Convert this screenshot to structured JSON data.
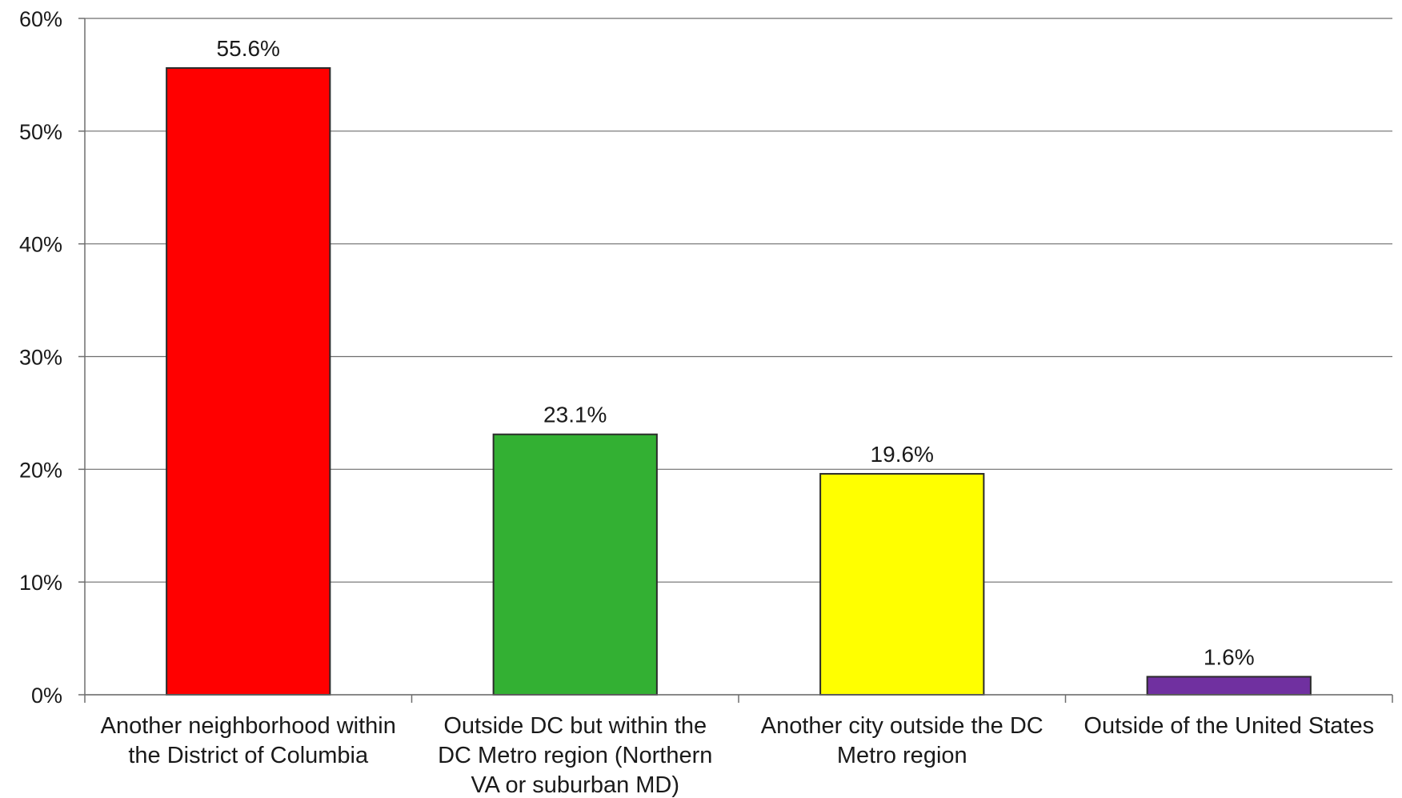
{
  "chart_data": {
    "type": "bar",
    "title": "",
    "xlabel": "",
    "ylabel": "",
    "ylim": [
      0,
      60
    ],
    "yticks": [
      0,
      10,
      20,
      30,
      40,
      50,
      60
    ],
    "ytick_labels": [
      "0%",
      "10%",
      "20%",
      "30%",
      "40%",
      "50%",
      "60%"
    ],
    "grid": true,
    "legend": "none",
    "categories": [
      [
        "Another neighborhood within",
        "the District of Columbia"
      ],
      [
        "Outside DC but within the",
        "DC Metro region (Northern",
        "VA or suburban MD)"
      ],
      [
        "Another city outside the DC",
        "Metro region"
      ],
      [
        "Outside of the United States"
      ]
    ],
    "values": [
      55.6,
      23.1,
      19.6,
      1.6
    ],
    "data_labels": [
      "55.6%",
      "23.1%",
      "19.6%",
      "1.6%"
    ],
    "colors": [
      "#ff0000",
      "#33b033",
      "#ffff00",
      "#7030a0"
    ]
  }
}
